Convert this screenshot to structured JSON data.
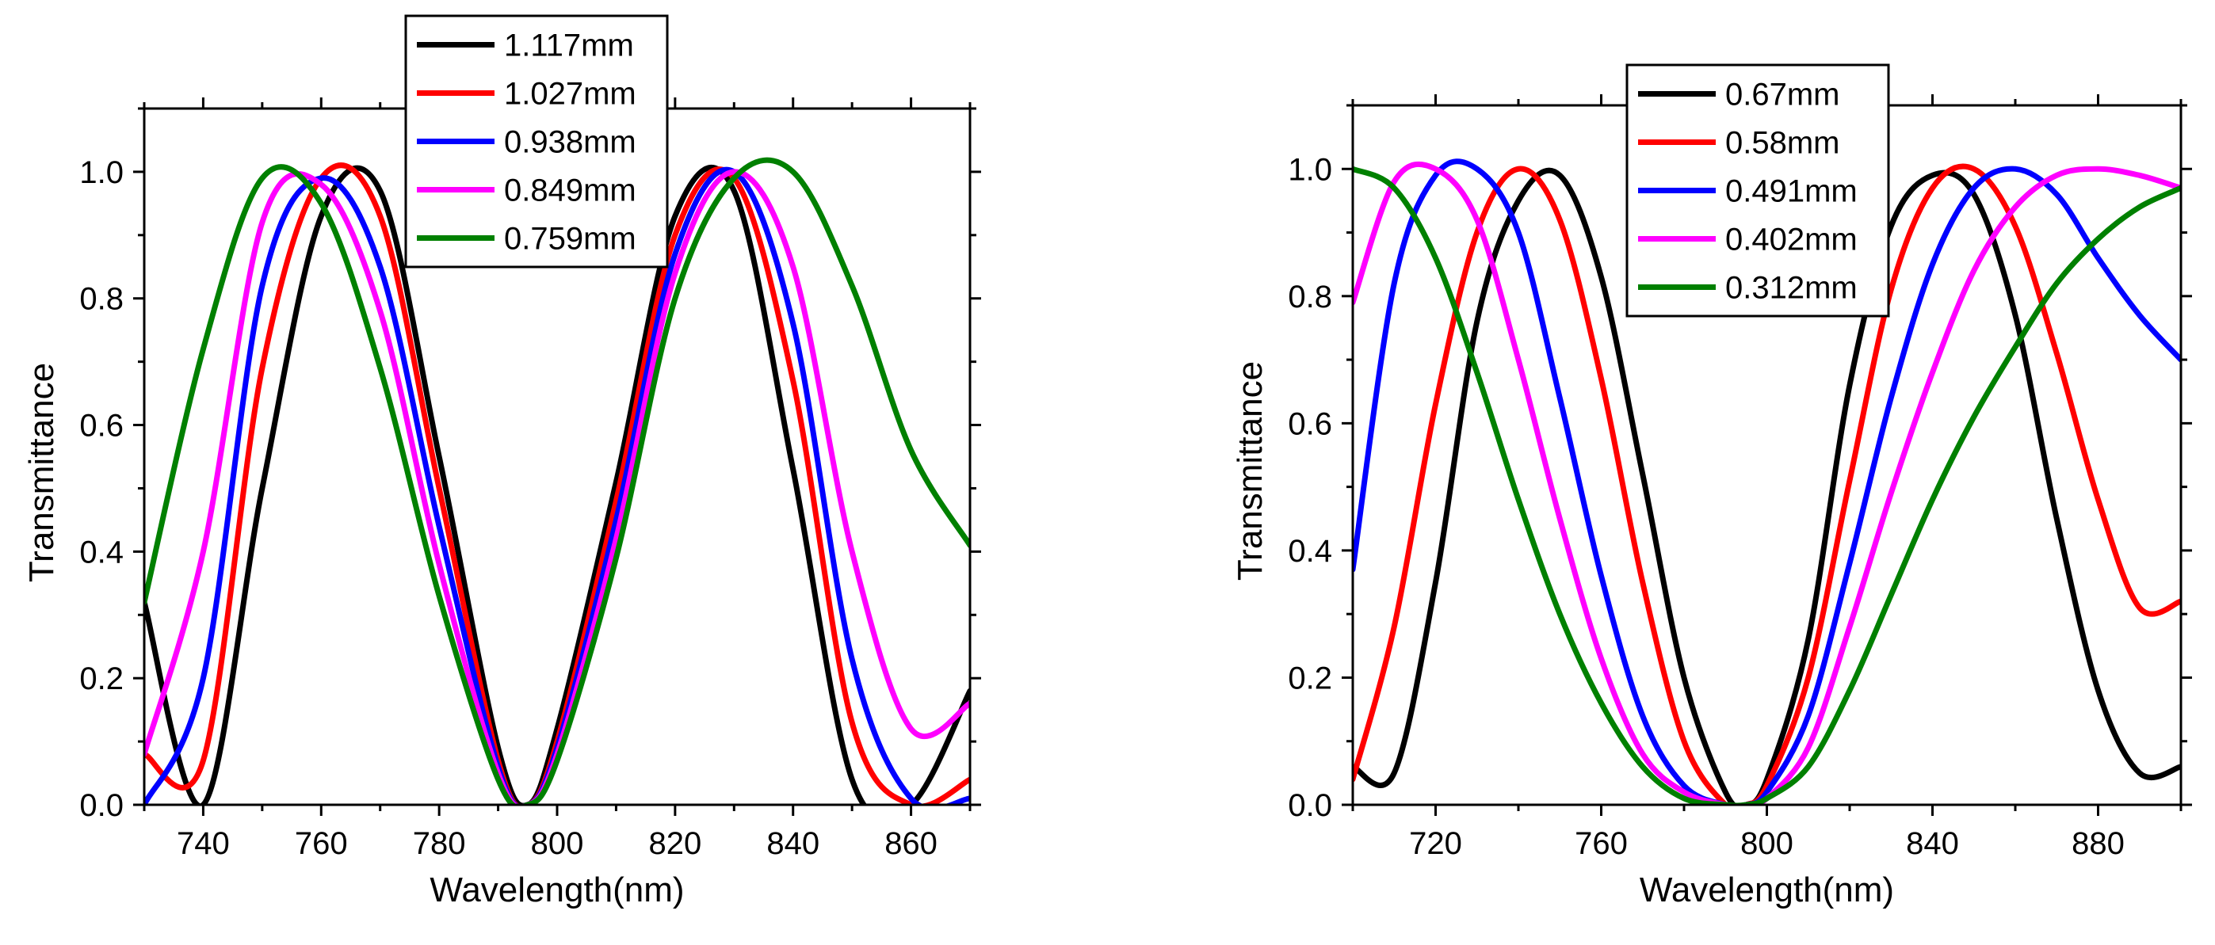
{
  "chart_data": [
    {
      "type": "line",
      "xlabel": "Wavelength(nm)",
      "ylabel": "Transmittance",
      "xlim": [
        730,
        870
      ],
      "ylim": [
        0,
        1.1
      ],
      "xticks": [
        740,
        760,
        780,
        800,
        820,
        840,
        860
      ],
      "yticks": [
        0.0,
        0.2,
        0.4,
        0.6,
        0.8,
        1.0
      ],
      "xtick_labels": [
        "740",
        "760",
        "780",
        "800",
        "820",
        "840",
        "860"
      ],
      "ytick_labels": [
        "0.0",
        "0.2",
        "0.4",
        "0.6",
        "0.8",
        "1.0"
      ],
      "legend_position": "top-center",
      "grid": false,
      "x": [
        730,
        740,
        750,
        760,
        770,
        780,
        790,
        795,
        800,
        810,
        820,
        830,
        840,
        850,
        860,
        870
      ],
      "series": [
        {
          "name": "1.117mm",
          "color": "#000000",
          "values": [
            0.32,
            0.0,
            0.5,
            0.93,
            0.97,
            0.55,
            0.09,
            0.0,
            0.12,
            0.51,
            0.93,
            0.97,
            0.53,
            0.04,
            0.0,
            0.18
          ]
        },
        {
          "name": "1.027mm",
          "color": "#ff0000",
          "values": [
            0.08,
            0.07,
            0.69,
            0.99,
            0.93,
            0.5,
            0.07,
            0.0,
            0.1,
            0.48,
            0.9,
            0.99,
            0.67,
            0.13,
            0.0,
            0.04
          ]
        },
        {
          "name": "0.938mm",
          "color": "#0000ff",
          "values": [
            0.0,
            0.2,
            0.82,
            0.99,
            0.85,
            0.44,
            0.06,
            0.0,
            0.09,
            0.45,
            0.87,
            1.0,
            0.76,
            0.23,
            0.01,
            0.01
          ]
        },
        {
          "name": "0.849mm",
          "color": "#ff00ff",
          "values": [
            0.08,
            0.4,
            0.92,
            0.98,
            0.78,
            0.38,
            0.05,
            0.0,
            0.08,
            0.42,
            0.84,
            1.0,
            0.85,
            0.4,
            0.12,
            0.16
          ]
        },
        {
          "name": "0.759mm",
          "color": "#008000",
          "values": [
            0.32,
            0.72,
            0.99,
            0.95,
            0.69,
            0.33,
            0.04,
            0.0,
            0.07,
            0.39,
            0.8,
            0.99,
            1.0,
            0.82,
            0.56,
            0.41
          ]
        }
      ]
    },
    {
      "type": "line",
      "xlabel": "Wavelength(nm)",
      "ylabel": "Transmittance",
      "xlim": [
        700,
        900
      ],
      "ylim": [
        0,
        1.1
      ],
      "xticks": [
        720,
        760,
        800,
        840,
        880
      ],
      "yticks": [
        0.0,
        0.2,
        0.4,
        0.6,
        0.8,
        1.0
      ],
      "xtick_labels": [
        "720",
        "760",
        "800",
        "840",
        "880"
      ],
      "ytick_labels": [
        "0.0",
        "0.2",
        "0.4",
        "0.6",
        "0.8",
        "1.0"
      ],
      "legend_position": "top-center",
      "grid": false,
      "x": [
        700,
        710,
        720,
        730,
        740,
        750,
        760,
        770,
        780,
        790,
        795,
        800,
        810,
        820,
        830,
        840,
        850,
        860,
        870,
        880,
        890,
        900
      ],
      "series": [
        {
          "name": "0.67mm",
          "color": "#000000",
          "values": [
            0.06,
            0.05,
            0.35,
            0.76,
            0.95,
            0.99,
            0.83,
            0.52,
            0.2,
            0.02,
            0.0,
            0.04,
            0.26,
            0.66,
            0.91,
            0.99,
            0.96,
            0.77,
            0.45,
            0.18,
            0.05,
            0.06
          ]
        },
        {
          "name": "0.58mm",
          "color": "#ff0000",
          "values": [
            0.04,
            0.28,
            0.63,
            0.9,
            1.0,
            0.92,
            0.67,
            0.35,
            0.1,
            0.0,
            0.0,
            0.03,
            0.2,
            0.51,
            0.81,
            0.97,
            1.0,
            0.91,
            0.71,
            0.48,
            0.31,
            0.32
          ]
        },
        {
          "name": "0.491mm",
          "color": "#0000ff",
          "values": [
            0.37,
            0.82,
            0.99,
            1.0,
            0.9,
            0.64,
            0.36,
            0.14,
            0.03,
            0.0,
            0.0,
            0.02,
            0.14,
            0.38,
            0.64,
            0.85,
            0.97,
            1.0,
            0.96,
            0.86,
            0.77,
            0.7
          ]
        },
        {
          "name": "0.402mm",
          "color": "#ff00ff",
          "values": [
            0.79,
            0.98,
            1.0,
            0.92,
            0.7,
            0.45,
            0.23,
            0.08,
            0.02,
            0.0,
            0.0,
            0.01,
            0.09,
            0.28,
            0.49,
            0.68,
            0.84,
            0.94,
            0.99,
            1.0,
            0.99,
            0.97
          ]
        },
        {
          "name": "0.312mm",
          "color": "#008000",
          "values": [
            1.0,
            0.97,
            0.86,
            0.68,
            0.48,
            0.3,
            0.16,
            0.06,
            0.01,
            0.0,
            0.0,
            0.01,
            0.06,
            0.18,
            0.33,
            0.48,
            0.61,
            0.72,
            0.82,
            0.89,
            0.94,
            0.97
          ]
        }
      ]
    }
  ]
}
